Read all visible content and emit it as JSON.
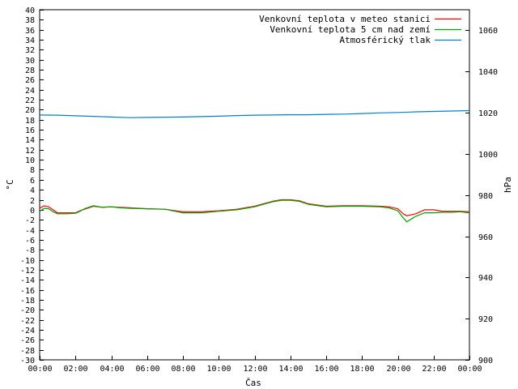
{
  "chart_data": {
    "type": "line",
    "title": "",
    "xlabel": "Čas",
    "ylabel": "°C",
    "y2label": "hPa",
    "x_tick_labels": [
      "00:00",
      "02:00",
      "04:00",
      "06:00",
      "08:00",
      "10:00",
      "12:00",
      "14:00",
      "16:00",
      "18:00",
      "20:00",
      "22:00",
      "00:00"
    ],
    "x_range_hours": [
      0,
      24
    ],
    "ylim": [
      -30,
      40
    ],
    "y_tick_step": 2,
    "y2lim": [
      900,
      1070
    ],
    "y2_ticks": [
      900,
      920,
      940,
      960,
      980,
      1000,
      1020,
      1040,
      1060
    ],
    "grid": false,
    "legend_position": "top-right",
    "series": [
      {
        "name": "Venkovní teplota v meteo stanici",
        "axis": "left",
        "color": "#ff0000",
        "x": [
          0,
          0.25,
          0.5,
          0.75,
          1.0,
          1.5,
          2.0,
          2.25,
          2.5,
          3.0,
          3.5,
          4.0,
          4.5,
          5.0,
          6.0,
          7.0,
          8.0,
          9.0,
          10.0,
          11.0,
          12.0,
          12.5,
          13.0,
          13.5,
          14.0,
          14.5,
          15.0,
          16.0,
          17.0,
          18.0,
          19.0,
          19.5,
          20.0,
          20.3,
          20.5,
          21.0,
          21.5,
          22.0,
          22.5,
          23.0,
          23.5,
          24.0
        ],
        "y": [
          0.3,
          0.8,
          0.6,
          0.0,
          -0.6,
          -0.6,
          -0.6,
          -0.2,
          0.1,
          0.7,
          0.5,
          0.6,
          0.5,
          0.4,
          0.2,
          0.1,
          -0.4,
          -0.4,
          -0.2,
          0.1,
          0.7,
          1.2,
          1.7,
          2.0,
          2.0,
          1.8,
          1.2,
          0.7,
          0.8,
          0.8,
          0.7,
          0.6,
          0.2,
          -0.8,
          -1.2,
          -0.8,
          0.0,
          0.0,
          -0.3,
          -0.3,
          -0.3,
          -0.4
        ]
      },
      {
        "name": "Venkovní teplota 5 cm nad zemí",
        "axis": "left",
        "color": "#00a000",
        "x": [
          0,
          0.25,
          0.5,
          0.75,
          1.0,
          1.5,
          2.0,
          2.25,
          2.5,
          3.0,
          3.5,
          4.0,
          4.5,
          5.0,
          6.0,
          7.0,
          8.0,
          9.0,
          10.0,
          11.0,
          12.0,
          12.5,
          13.0,
          13.5,
          14.0,
          14.5,
          15.0,
          16.0,
          17.0,
          18.0,
          19.0,
          19.5,
          20.0,
          20.3,
          20.5,
          21.0,
          21.5,
          22.0,
          22.5,
          23.0,
          23.5,
          24.0
        ],
        "y": [
          -0.3,
          0.3,
          0.2,
          -0.4,
          -0.8,
          -0.8,
          -0.7,
          -0.3,
          0.2,
          0.8,
          0.5,
          0.6,
          0.4,
          0.3,
          0.2,
          0.1,
          -0.6,
          -0.6,
          -0.3,
          0.0,
          0.6,
          1.1,
          1.6,
          1.9,
          1.9,
          1.7,
          1.1,
          0.6,
          0.7,
          0.7,
          0.6,
          0.4,
          -0.2,
          -1.6,
          -2.4,
          -1.3,
          -0.6,
          -0.6,
          -0.5,
          -0.5,
          -0.4,
          -0.6
        ]
      },
      {
        "name": "Atmosférický tlak",
        "axis": "right",
        "color": "#0080d0",
        "x": [
          0,
          1,
          2,
          3,
          4,
          5,
          6,
          7,
          8,
          9,
          10,
          11,
          12,
          13,
          14,
          15,
          16,
          17,
          18,
          19,
          20,
          21,
          22,
          23,
          24
        ],
        "y": [
          1018.9,
          1018.8,
          1018.5,
          1018.2,
          1017.9,
          1017.6,
          1017.7,
          1017.8,
          1017.9,
          1018.1,
          1018.3,
          1018.6,
          1018.8,
          1018.9,
          1019.0,
          1019.0,
          1019.2,
          1019.3,
          1019.6,
          1019.9,
          1020.1,
          1020.4,
          1020.6,
          1020.8,
          1021.0
        ]
      }
    ]
  }
}
